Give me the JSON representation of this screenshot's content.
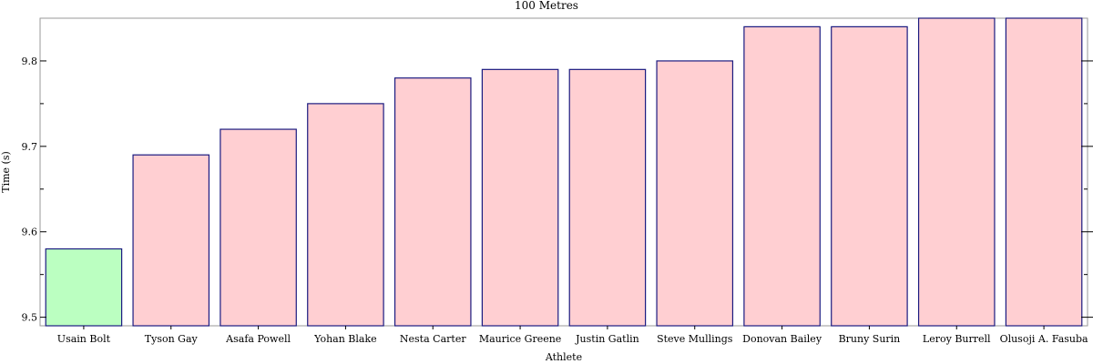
{
  "chart_data": {
    "type": "bar",
    "title": "100 Metres",
    "xlabel": "Athlete",
    "ylabel": "Time (s)",
    "categories": [
      "Usain Bolt",
      "Tyson Gay",
      "Asafa Powell",
      "Yohan Blake",
      "Nesta Carter",
      "Maurice Greene",
      "Justin Gatlin",
      "Steve Mullings",
      "Donovan Bailey",
      "Bruny Surin",
      "Leroy Burrell",
      "Olusoji A. Fasuba"
    ],
    "values": [
      9.58,
      9.69,
      9.72,
      9.75,
      9.78,
      9.79,
      9.79,
      9.8,
      9.84,
      9.84,
      9.85,
      9.85
    ],
    "ylim": [
      9.49,
      9.85
    ],
    "yticks": [
      "9.5",
      "9.6",
      "9.7",
      "9.8"
    ],
    "grid": false,
    "highlight_color": "#bbffc1",
    "bar_color": "#ffcfd2",
    "bar_edge_color": "#1a1a80"
  }
}
